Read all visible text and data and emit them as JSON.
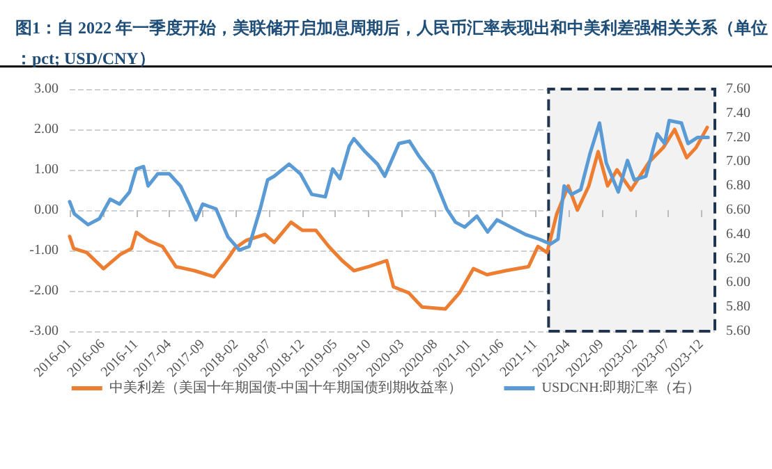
{
  "chart_data": {
    "type": "line",
    "title": "图1：自 2022 年一季度开始，美联储开启加息周期后，人民币汇率表现出和中美利差强相关关系（单位：pct; USD/CNY）",
    "xlim": [
      "2016-01",
      "2024-02"
    ],
    "xticks": [
      "2016-01",
      "2016-06",
      "2016-11",
      "2017-04",
      "2017-09",
      "2018-02",
      "2018-07",
      "2018-12",
      "2019-05",
      "2019-10",
      "2020-03",
      "2020-08",
      "2021-01",
      "2021-06",
      "2021-11",
      "2022-04",
      "2022-09",
      "2023-02",
      "2023-07",
      "2023-12"
    ],
    "ylim": [
      -3,
      3
    ],
    "yticks": [
      {
        "value": -3,
        "label": "-3.00"
      },
      {
        "value": -2,
        "label": "-2.00"
      },
      {
        "value": -1,
        "label": "-1.00"
      },
      {
        "value": 0,
        "label": "0.00"
      },
      {
        "value": 1,
        "label": "1.00"
      },
      {
        "value": 2,
        "label": "2.00"
      },
      {
        "value": 3,
        "label": "3.00"
      }
    ],
    "y2lim": [
      5.6,
      7.6
    ],
    "y2ticks": [
      {
        "value": 5.6,
        "label": "5.60"
      },
      {
        "value": 5.8,
        "label": "5.80"
      },
      {
        "value": 6,
        "label": "6.00"
      },
      {
        "value": 6.2,
        "label": "6.20"
      },
      {
        "value": 6.4,
        "label": "6.40"
      },
      {
        "value": 6.6,
        "label": "6.60"
      },
      {
        "value": 6.8,
        "label": "6.80"
      },
      {
        "value": 7,
        "label": "7.00"
      },
      {
        "value": 7.2,
        "label": "7.20"
      },
      {
        "value": 7.4,
        "label": "7.40"
      },
      {
        "value": 7.6,
        "label": "7.60"
      }
    ],
    "grid": "y",
    "legend": "bottom",
    "marker": "none",
    "line_style": "solid",
    "bands": [
      {
        "axis": "x",
        "from": "2022-01",
        "to": "2024-02",
        "color": "#f2f2f2"
      }
    ],
    "series": [
      {
        "name": "中美利差（美国十年期国债-中国十年期国债到期收益率）",
        "color": "#ed7d31",
        "x": [
          "2016-01-01",
          "2016-01-19",
          "2016-03-19",
          "2016-06-04",
          "2016-08-19",
          "2016-10-10",
          "2016-11-01",
          "2016-12-25",
          "2017-03-01",
          "2017-05-01",
          "2017-07-25",
          "2017-10-22",
          "2017-12-25",
          "2018-01-25",
          "2018-03-19",
          "2018-06-13",
          "2018-07-25",
          "2018-10-10",
          "2018-12-01",
          "2019-02-01",
          "2019-04-01",
          "2019-06-01",
          "2019-07-25",
          "2019-10-01",
          "2019-12-22",
          "2020-01-22",
          "2020-04-01",
          "2020-06-01",
          "2020-09-15",
          "2020-11-19",
          "2021-01-22",
          "2021-03-25",
          "2021-06-19",
          "2021-10-01",
          "2021-11-13",
          "2021-12-25",
          "2022-02-07",
          "2022-04-01",
          "2022-05-13",
          "2022-07-04",
          "2022-08-16",
          "2022-09-28",
          "2022-11-10",
          "2023-01-13",
          "2023-04-07",
          "2023-06-10",
          "2023-08-01",
          "2023-09-25",
          "2023-11-07",
          "2023-12-28"
        ],
        "values": [
          -0.65,
          -0.95,
          -1.05,
          -1.45,
          -1.1,
          -0.95,
          -0.55,
          -0.75,
          -0.9,
          -1.4,
          -1.5,
          -1.65,
          -1.2,
          -0.95,
          -0.75,
          -0.6,
          -0.8,
          -0.3,
          -0.5,
          -0.5,
          -0.9,
          -1.25,
          -1.5,
          -1.4,
          -1.25,
          -1.9,
          -2.05,
          -2.4,
          -2.45,
          -2.05,
          -1.45,
          -1.6,
          -1.5,
          -1.4,
          -0.9,
          -1.05,
          -0.1,
          0.6,
          0,
          0.6,
          1.45,
          0.6,
          1.0,
          0.5,
          1.2,
          1.55,
          2.0,
          1.3,
          1.55,
          2.05
        ]
      },
      {
        "name": "USDCNH:即期汇率（右）",
        "color": "#5b9bd5",
        "axis": "y2",
        "x": [
          "2016-01-01",
          "2016-01-22",
          "2016-03-25",
          "2016-05-16",
          "2016-07-04",
          "2016-08-16",
          "2016-10-01",
          "2016-11-01",
          "2016-12-04",
          "2016-12-25",
          "2017-02-07",
          "2017-04-01",
          "2017-05-22",
          "2017-07-01",
          "2017-08-01",
          "2017-09-01",
          "2017-11-01",
          "2017-12-25",
          "2018-02-16",
          "2018-04-01",
          "2018-05-22",
          "2018-06-25",
          "2018-07-25",
          "2018-10-01",
          "2018-11-22",
          "2019-01-13",
          "2019-03-16",
          "2019-04-19",
          "2019-05-22",
          "2019-07-04",
          "2019-07-25",
          "2019-09-10",
          "2019-11-10",
          "2019-12-13",
          "2020-01-13",
          "2020-02-16",
          "2020-04-04",
          "2020-05-16",
          "2020-07-19",
          "2020-09-22",
          "2020-11-01",
          "2020-12-13",
          "2021-02-07",
          "2021-03-28",
          "2021-05-10",
          "2021-07-13",
          "2021-09-16",
          "2021-11-19",
          "2022-01-10",
          "2022-02-13",
          "2022-03-13",
          "2022-04-16",
          "2022-05-28",
          "2022-07-10",
          "2022-08-22",
          "2022-09-22",
          "2022-11-16",
          "2022-12-28",
          "2023-01-28",
          "2023-03-22",
          "2023-05-13",
          "2023-06-16",
          "2023-07-07",
          "2023-09-01",
          "2023-10-01",
          "2023-11-13",
          "2024-01-01"
        ],
        "values": [
          6.67,
          6.57,
          6.48,
          6.53,
          6.69,
          6.65,
          6.75,
          6.94,
          6.96,
          6.8,
          6.9,
          6.9,
          6.8,
          6.65,
          6.52,
          6.65,
          6.61,
          6.38,
          6.27,
          6.3,
          6.61,
          6.85,
          6.88,
          6.98,
          6.9,
          6.73,
          6.71,
          6.94,
          6.86,
          7.13,
          7.19,
          7.09,
          6.98,
          6.88,
          7.01,
          7.15,
          7.17,
          7.05,
          6.9,
          6.61,
          6.5,
          6.46,
          6.55,
          6.42,
          6.52,
          6.46,
          6.4,
          6.36,
          6.32,
          6.36,
          6.8,
          6.73,
          6.77,
          7.07,
          7.32,
          6.99,
          6.75,
          7.01,
          6.85,
          6.88,
          7.23,
          7.15,
          7.34,
          7.32,
          7.15,
          7.2,
          7.2
        ]
      }
    ]
  }
}
